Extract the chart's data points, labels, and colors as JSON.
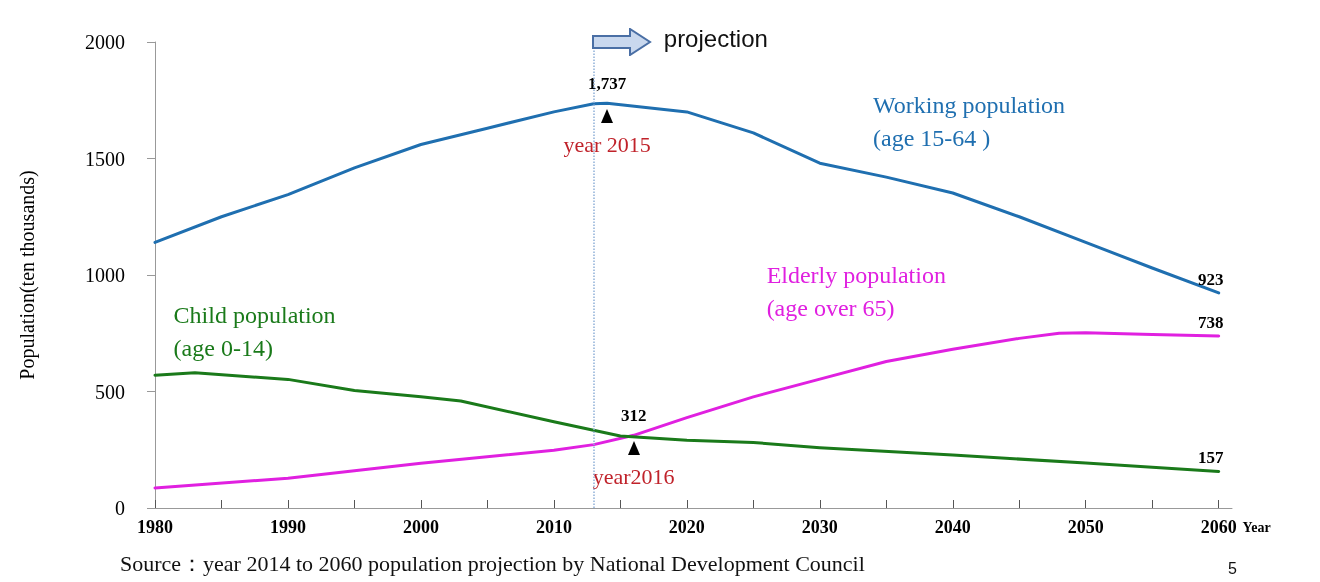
{
  "chart_data": {
    "type": "line",
    "ylabel": "Population(ten thousands)",
    "xlabel": "Year",
    "xlim": [
      1980,
      2061
    ],
    "ylim": [
      0,
      2000
    ],
    "xticks": [
      1980,
      {
        "value": 1985,
        "label": null
      },
      1990,
      {
        "value": 1995,
        "label": null
      },
      2000,
      {
        "value": 2005,
        "label": null
      },
      2010,
      {
        "value": 2015,
        "label": null
      },
      2020,
      {
        "value": 2025,
        "label": null
      },
      2030,
      {
        "value": 2035,
        "label": null
      },
      2040,
      {
        "value": 2045,
        "label": null
      },
      2050,
      {
        "value": 2055,
        "label": null
      },
      2060
    ],
    "yticks": [
      0,
      500,
      1000,
      1500,
      2000
    ],
    "grid": false,
    "legend": false,
    "marker": "none",
    "line_style": "solid",
    "series": [
      {
        "name": "Working population\n(age 15-64 )",
        "color": "#1f6fb0",
        "x": [
          1980,
          1985,
          1990,
          1995,
          2000,
          2005,
          2010,
          2013,
          2014,
          2020,
          2025,
          2030,
          2035,
          2040,
          2045,
          2050,
          2055,
          2060
        ],
        "values": [
          1140,
          1250,
          1345,
          1460,
          1560,
          1630,
          1700,
          1735,
          1737,
          1700,
          1610,
          1480,
          1420,
          1352,
          1250,
          1140,
          1030,
          923
        ],
        "value_labels": [
          null,
          null,
          null,
          null,
          null,
          null,
          null,
          null,
          "1,737",
          null,
          null,
          null,
          null,
          null,
          null,
          null,
          null,
          "923"
        ]
      },
      {
        "name": "Elderly population\n(age over 65)",
        "color": "#e020e0",
        "x": [
          1980,
          1990,
          2000,
          2010,
          2013,
          2016,
          2020,
          2025,
          2030,
          2035,
          2040,
          2045,
          2048,
          2050,
          2055,
          2060
        ],
        "values": [
          86,
          128,
          192,
          248,
          272,
          312,
          388,
          477,
          553,
          629,
          681,
          728,
          750,
          752,
          745,
          738
        ],
        "value_labels": [
          null,
          null,
          null,
          null,
          null,
          "312",
          null,
          null,
          null,
          null,
          null,
          null,
          null,
          null,
          null,
          "738"
        ]
      },
      {
        "name": "Child population\n(age 0-14)",
        "color": "#1a7a1a",
        "x": [
          1980,
          1983,
          1990,
          1995,
          2000,
          2003,
          2010,
          2015,
          2020,
          2025,
          2030,
          2040,
          2050,
          2060
        ],
        "values": [
          570,
          580,
          552,
          504,
          477,
          459,
          370,
          309,
          291,
          281,
          259,
          227,
          193,
          157
        ],
        "value_labels": [
          null,
          null,
          null,
          null,
          null,
          null,
          null,
          null,
          null,
          null,
          null,
          null,
          null,
          "157"
        ]
      }
    ],
    "ref_lines": [
      {
        "axis": "x",
        "value": 2013,
        "label": "projection",
        "color": "#8fb0d8",
        "line_style": "dotted"
      }
    ],
    "annotations": [
      {
        "text": "year 2015",
        "x": 2014,
        "y": 1737
      },
      {
        "text": "year2016",
        "x": 2016,
        "y": 312
      },
      "Source：year 2014 to 2060 population projection by National Development Council",
      "5"
    ]
  }
}
